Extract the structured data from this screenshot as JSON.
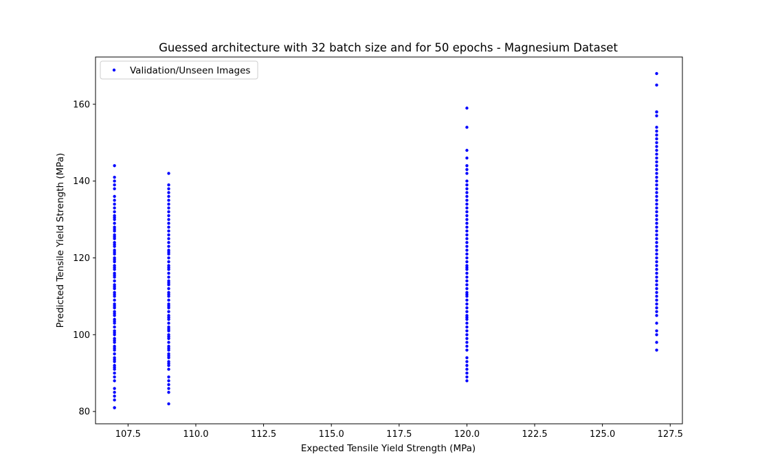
{
  "chart_data": {
    "type": "scatter",
    "title": "Guessed architecture with 32 batch size and for 50 epochs - Magnesium Dataset",
    "xlabel": "Expected Tensile Yield Strength (MPa)",
    "ylabel": "Predicted Tensile Yield Strength (MPa)",
    "xlim": [
      106.3,
      127.95
    ],
    "ylim": [
      76.8,
      172.3
    ],
    "xticks": [
      107.5,
      110.0,
      112.5,
      115.0,
      117.5,
      120.0,
      122.5,
      125.0,
      127.5
    ],
    "xtick_labels": [
      "107.5",
      "110.0",
      "112.5",
      "115.0",
      "117.5",
      "120.0",
      "122.5",
      "125.0",
      "127.5"
    ],
    "yticks": [
      80,
      100,
      120,
      140,
      160
    ],
    "ytick_labels": [
      "80",
      "100",
      "120",
      "140",
      "160"
    ],
    "grid": false,
    "legend": {
      "position": "upper-left"
    },
    "series": [
      {
        "name": "Validation/Unseen Images",
        "color": "#0000ff",
        "marker": "dot",
        "groups": [
          {
            "x": 107,
            "y": [
              81,
              81,
              83,
              84,
              85,
              86,
              88,
              89,
              90,
              91,
              91.5,
              92,
              93,
              93.5,
              94,
              95,
              96,
              96.5,
              97,
              98,
              98.5,
              99,
              100,
              100.5,
              101,
              102,
              103,
              103.5,
              104,
              105,
              105.5,
              106,
              107,
              107.5,
              108,
              109,
              110,
              110.5,
              111,
              112,
              112.5,
              113,
              114,
              115,
              115.5,
              116,
              117,
              117.5,
              118,
              119,
              119.5,
              120,
              121,
              121.5,
              122,
              123,
              123.5,
              124,
              125,
              125.5,
              126,
              127,
              127.5,
              128,
              129,
              130,
              130.5,
              131,
              132,
              133,
              134,
              135,
              136,
              138,
              139,
              140,
              141,
              144
            ]
          },
          {
            "x": 109,
            "y": [
              82,
              85,
              86,
              87,
              88,
              89,
              91,
              92,
              92.5,
              93,
              94,
              94.5,
              95,
              96,
              96.5,
              97,
              98,
              99,
              99.5,
              100,
              101,
              101.5,
              102,
              103,
              104,
              104.5,
              105,
              106,
              107,
              107.5,
              108,
              109,
              110,
              110.5,
              111,
              112,
              113,
              113.5,
              114,
              115,
              116,
              117,
              117.5,
              118,
              119,
              120,
              121,
              121.5,
              122,
              123,
              124,
              125,
              126,
              127,
              128,
              129,
              130,
              131,
              132,
              133,
              134,
              135,
              136,
              137,
              138,
              139,
              142
            ]
          },
          {
            "x": 120,
            "y": [
              88,
              89,
              90,
              91,
              92,
              93,
              94,
              96,
              97,
              98,
              99,
              100,
              101,
              102,
              103,
              104,
              104.5,
              105,
              106,
              107,
              108,
              109,
              110,
              110.5,
              111,
              112,
              113,
              114,
              115,
              116,
              117,
              117.5,
              118,
              119,
              120,
              121,
              122,
              123,
              124,
              125,
              126,
              127,
              128,
              129,
              130,
              131,
              132,
              133,
              134,
              135,
              136,
              137,
              138,
              139,
              140,
              142,
              143,
              144,
              146,
              148,
              154,
              159
            ]
          },
          {
            "x": 127,
            "y": [
              96,
              98,
              100,
              101,
              103,
              105,
              106,
              107,
              108,
              109,
              110,
              111,
              112,
              113,
              114,
              115,
              116,
              117,
              118,
              119,
              120,
              121,
              122,
              123,
              124,
              125,
              126,
              127,
              128,
              129,
              130,
              131,
              132,
              133,
              134,
              135,
              136,
              137,
              138,
              139,
              140,
              141,
              142,
              143,
              144,
              145,
              146,
              147,
              148,
              149,
              150,
              151,
              152,
              153,
              154,
              157,
              158,
              158,
              165,
              168
            ]
          }
        ]
      }
    ]
  }
}
